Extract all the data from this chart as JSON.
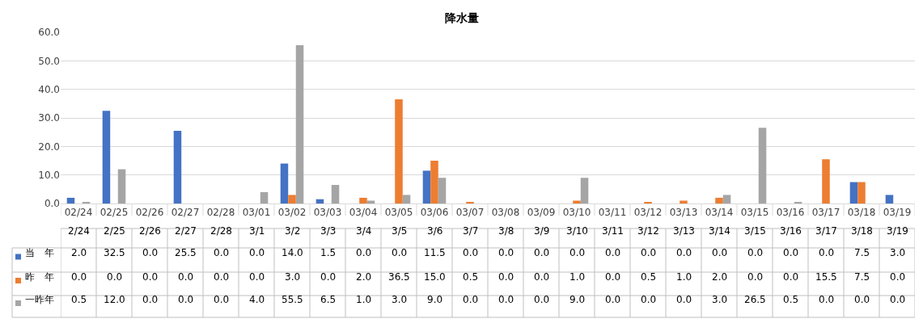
{
  "chart_data": {
    "type": "bar",
    "title": "降水量",
    "categories": [
      "02/24",
      "02/25",
      "02/26",
      "02/27",
      "02/28",
      "03/01",
      "03/02",
      "03/03",
      "03/04",
      "03/05",
      "03/06",
      "03/07",
      "03/08",
      "03/09",
      "03/10",
      "03/11",
      "03/12",
      "03/13",
      "03/14",
      "03/15",
      "03/16",
      "03/17",
      "03/18",
      "03/19"
    ],
    "series": [
      {
        "name": "当　年",
        "color": "#4472c4",
        "values": [
          2.0,
          32.5,
          0.0,
          25.5,
          0.0,
          0.0,
          14.0,
          1.5,
          0.0,
          0.0,
          11.5,
          0.0,
          0.0,
          0.0,
          0.0,
          0.0,
          0.0,
          0.0,
          0.0,
          0.0,
          0.0,
          0.0,
          7.5,
          3.0
        ],
        "value_labels": [
          "2.0",
          "32.5",
          "0.0",
          "25.5",
          "0.0",
          "0.0",
          "14.0",
          "1.5",
          "0.0",
          "0.0",
          "11.5",
          "0.0",
          "0.0",
          "0.0",
          "0.0",
          "0.0",
          "0.0",
          "0.0",
          "0.0",
          "0.0",
          "0.0",
          "0.0",
          "7.5",
          "3.0"
        ]
      },
      {
        "name": "昨　年",
        "color": "#ed7d31",
        "values": [
          0.0,
          0.0,
          0.0,
          0.0,
          0.0,
          0.0,
          3.0,
          0.0,
          2.0,
          36.5,
          15.0,
          0.5,
          0.0,
          0.0,
          1.0,
          0.0,
          0.5,
          1.0,
          2.0,
          0.0,
          0.0,
          15.5,
          7.5,
          0.0
        ],
        "value_labels": [
          "0.0",
          "0.0",
          "0.0",
          "0.0",
          "0.0",
          "0.0",
          "3.0",
          "0.0",
          "2.0",
          "36.5",
          "15.0",
          "0.5",
          "0.0",
          "0.0",
          "1.0",
          "0.0",
          "0.5",
          "1.0",
          "2.0",
          "0.0",
          "0.0",
          "15.5",
          "7.5",
          "0.0"
        ]
      },
      {
        "name": "一昨年",
        "color": "#a5a5a5",
        "values": [
          0.5,
          12.0,
          0.0,
          0.0,
          0.0,
          4.0,
          55.5,
          6.5,
          1.0,
          3.0,
          9.0,
          0.0,
          0.0,
          0.0,
          9.0,
          0.0,
          0.0,
          0.0,
          3.0,
          26.5,
          0.5,
          0.0,
          0.0,
          0.0
        ],
        "value_labels": [
          "0.5",
          "12.0",
          "0.0",
          "0.0",
          "0.0",
          "4.0",
          "55.5",
          "6.5",
          "1.0",
          "3.0",
          "9.0",
          "0.0",
          "0.0",
          "0.0",
          "9.0",
          "0.0",
          "0.0",
          "0.0",
          "3.0",
          "26.5",
          "0.5",
          "0.0",
          "0.0",
          "0.0"
        ]
      }
    ],
    "annotations": [
      "2/24",
      "2/25",
      "2/26",
      "2/27",
      "2/28",
      "3/1",
      "3/2",
      "3/3",
      "3/4",
      "3/5",
      "3/6",
      "3/7",
      "3/8",
      "3/9",
      "3/10",
      "3/11",
      "3/12",
      "3/13",
      "3/14",
      "3/15",
      "3/16",
      "3/17",
      "3/18",
      "3/19"
    ],
    "ylim": [
      0,
      60
    ],
    "yticks": [
      {
        "value": 0,
        "label": "0.0"
      },
      {
        "value": 10,
        "label": "10.0"
      },
      {
        "value": 20,
        "label": "20.0"
      },
      {
        "value": 30,
        "label": "30.0"
      },
      {
        "value": 40,
        "label": "40.0"
      },
      {
        "value": 50,
        "label": "50.0"
      },
      {
        "value": 60,
        "label": "60.0"
      }
    ],
    "grid": "y",
    "legend": "bottom left"
  }
}
